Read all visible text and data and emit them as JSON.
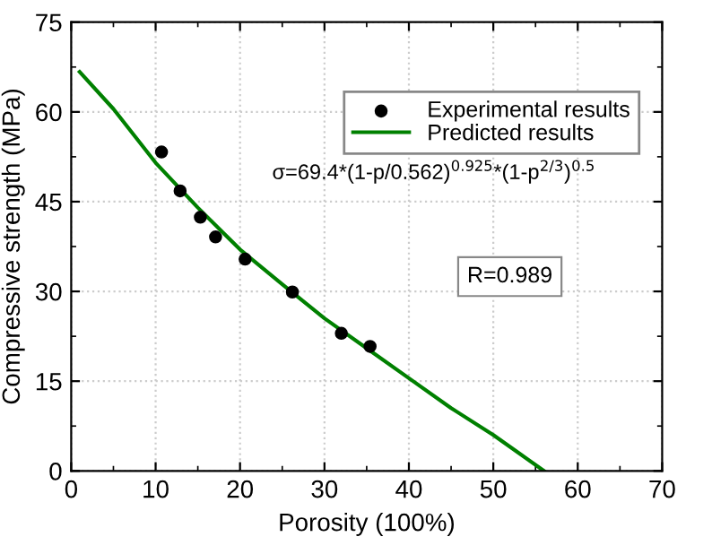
{
  "chart_data": {
    "type": "scatter",
    "xlabel": "Porosity (100%)",
    "ylabel": "Compressive strength (MPa)",
    "xlim": [
      0,
      70
    ],
    "xticks": [
      0,
      10,
      20,
      30,
      40,
      50,
      60,
      70
    ],
    "ylim": [
      0,
      75
    ],
    "yticks": [
      0,
      15,
      30,
      45,
      60,
      75
    ],
    "grid": true,
    "legend": "top right",
    "series": [
      {
        "name": "Experimental results",
        "marker": "circle",
        "color": "#000000",
        "x": [
          10.7,
          12.9,
          15.3,
          17.1,
          20.6,
          26.2,
          32,
          35.4
        ],
        "values": [
          53.3,
          46.8,
          42.4,
          39.1,
          35.4,
          29.9,
          23.0,
          20.8
        ]
      },
      {
        "name": "Predicted results",
        "type": "line",
        "marker": "none",
        "color": "#008000",
        "x": [
          1,
          5,
          10,
          15,
          20,
          25,
          30,
          35,
          40,
          45,
          50,
          53,
          56
        ],
        "values": [
          66.7,
          60.5,
          51.5,
          44,
          37,
          31.2,
          25.5,
          20.5,
          15.5,
          10.5,
          6,
          3,
          0
        ]
      }
    ],
    "annotations": [
      "σ=69.4*(1-p/0.562)$^{0.925}$*(1-p$^{2/3}$)$^{0.5}$",
      "R=0.989"
    ]
  }
}
